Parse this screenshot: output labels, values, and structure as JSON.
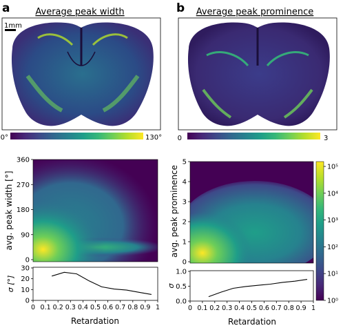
{
  "panels": {
    "a": {
      "letter": "a",
      "title": "Average peak width",
      "scalebar_label": "1mm",
      "colorbar": {
        "min_label": "0°",
        "max_label": "130°"
      }
    },
    "b": {
      "letter": "b",
      "title": "Average peak prominence",
      "colorbar": {
        "min_label": "0",
        "max_label": "3"
      }
    }
  },
  "colors": {
    "viridis": [
      "#440154",
      "#482878",
      "#3e4989",
      "#31688e",
      "#26828e",
      "#1f9e89",
      "#35b779",
      "#6ece58",
      "#b5de2b",
      "#fde725"
    ],
    "brain_bg": "#2c2f6e",
    "line": "#000000"
  },
  "chart_data": [
    {
      "id": "a-heatmap",
      "type": "heatmap",
      "xlabel": "",
      "ylabel": "avg. peak width [°]",
      "xlim": [
        0,
        1
      ],
      "ylim": [
        0,
        360
      ],
      "yticks": [
        "0",
        "90",
        "180",
        "270",
        "360"
      ]
    },
    {
      "id": "a-sigma",
      "type": "line",
      "xlabel": "Retardation",
      "ylabel": "σ [°]",
      "xlim": [
        0,
        1
      ],
      "ylim": [
        0,
        30
      ],
      "xticks": [
        "0",
        "0.1",
        "0.2",
        "0.3",
        "0.4",
        "0.5",
        "0.6",
        "0.7",
        "0.8",
        "0.9",
        "1"
      ],
      "yticks": [
        "0",
        "10",
        "20",
        "30"
      ],
      "x": [
        0.15,
        0.25,
        0.35,
        0.45,
        0.55,
        0.65,
        0.75,
        0.85,
        0.95
      ],
      "y": [
        22.5,
        26,
        24.5,
        18,
        12.5,
        10.5,
        9.5,
        7.5,
        5.5
      ]
    },
    {
      "id": "b-heatmap",
      "type": "heatmap",
      "xlabel": "",
      "ylabel": "avg. peak prominence",
      "xlim": [
        0,
        1
      ],
      "ylim": [
        0,
        5
      ],
      "yticks": [
        "0",
        "1",
        "2",
        "3",
        "4",
        "5"
      ],
      "colorbar_scale": "log",
      "colorbar_ticks": [
        "10⁰",
        "10¹",
        "10²",
        "10³",
        "10⁴",
        "10⁵"
      ]
    },
    {
      "id": "b-sigma",
      "type": "line",
      "xlabel": "Retardation",
      "ylabel": "σ",
      "xlim": [
        0,
        1
      ],
      "ylim": [
        0,
        1
      ],
      "xticks": [
        "0",
        "0.1",
        "0.2",
        "0.3",
        "0.4",
        "0.5",
        "0.6",
        "0.7",
        "0.8",
        "0.9",
        "1"
      ],
      "yticks": [
        "0.0",
        "0.5",
        "1.0"
      ],
      "x": [
        0.15,
        0.25,
        0.35,
        0.45,
        0.55,
        0.65,
        0.75,
        0.85,
        0.95
      ],
      "y": [
        0.15,
        0.3,
        0.43,
        0.49,
        0.53,
        0.57,
        0.63,
        0.67,
        0.73
      ]
    }
  ]
}
